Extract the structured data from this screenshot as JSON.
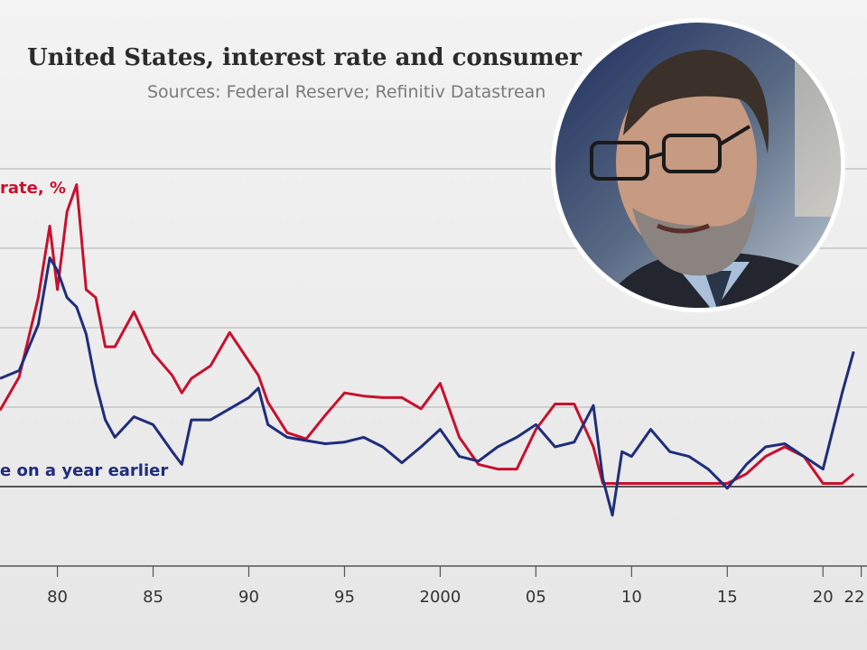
{
  "chart_data": {
    "type": "line",
    "title": "United States, interest rate and consumer",
    "subtitle": "Sources: Federal Reserve; Refinitiv Datastrean",
    "x": [
      1977,
      1978,
      1979,
      1979.6,
      1980,
      1980.5,
      1981,
      1981.5,
      1982,
      1982.5,
      1983,
      1984,
      1985,
      1986,
      1986.5,
      1987,
      1988,
      1989,
      1990,
      1990.5,
      1991,
      1992,
      1993,
      1994,
      1995,
      1996,
      1997,
      1998,
      1999,
      2000,
      2001,
      2002,
      2003,
      2004,
      2005,
      2006,
      2007,
      2008,
      2008.5,
      2009,
      2009.5,
      2010,
      2011,
      2012,
      2013,
      2014,
      2015,
      2016,
      2017,
      2018,
      2019,
      2020,
      2021,
      2021.6
    ],
    "series": [
      {
        "name": "rate, %",
        "color": "#c8102e",
        "values": [
          4.8,
          6.9,
          11.9,
          16.4,
          12.4,
          17.3,
          19.0,
          12.4,
          11.9,
          8.8,
          8.8,
          11.0,
          8.4,
          7.0,
          5.9,
          6.8,
          7.6,
          9.7,
          7.9,
          7.0,
          5.3,
          3.4,
          3.0,
          4.5,
          5.9,
          5.7,
          5.6,
          5.6,
          4.9,
          6.5,
          3.1,
          1.4,
          1.1,
          1.1,
          3.6,
          5.2,
          5.2,
          2.5,
          0.2,
          0.2,
          0.2,
          0.2,
          0.2,
          0.2,
          0.2,
          0.2,
          0.2,
          0.8,
          1.9,
          2.5,
          1.9,
          0.2,
          0.2,
          0.8
        ]
      },
      {
        "name": "e on a year earlier",
        "color": "#1f2d7a",
        "values": [
          6.8,
          7.3,
          10.2,
          14.4,
          13.6,
          11.9,
          11.3,
          9.6,
          6.5,
          4.2,
          3.1,
          4.4,
          3.9,
          2.2,
          1.4,
          4.2,
          4.2,
          4.9,
          5.6,
          6.2,
          3.9,
          3.1,
          2.9,
          2.7,
          2.8,
          3.1,
          2.5,
          1.5,
          2.5,
          3.6,
          1.9,
          1.6,
          2.5,
          3.1,
          3.9,
          2.5,
          2.8,
          5.1,
          0.5,
          -1.8,
          2.2,
          1.9,
          3.6,
          2.2,
          1.9,
          1.1,
          -0.1,
          1.4,
          2.5,
          2.7,
          1.9,
          1.1,
          5.9,
          8.5
        ]
      }
    ],
    "xlim": [
      1977,
      2022.3
    ],
    "xticks": [
      {
        "value": 1980,
        "label": "80"
      },
      {
        "value": 1985,
        "label": "85"
      },
      {
        "value": 1990,
        "label": "90"
      },
      {
        "value": 1995,
        "label": "95"
      },
      2000,
      {
        "value": 2005,
        "label": "05"
      },
      {
        "value": 2010,
        "label": "10"
      },
      {
        "value": 2015,
        "label": "15"
      },
      {
        "value": 2020,
        "label": "20"
      },
      {
        "value": 2022,
        "label": "22"
      }
    ],
    "ylim": [
      -5,
      20
    ],
    "yticks": [
      -5,
      0,
      5,
      10,
      15,
      20
    ],
    "grid": true
  }
}
